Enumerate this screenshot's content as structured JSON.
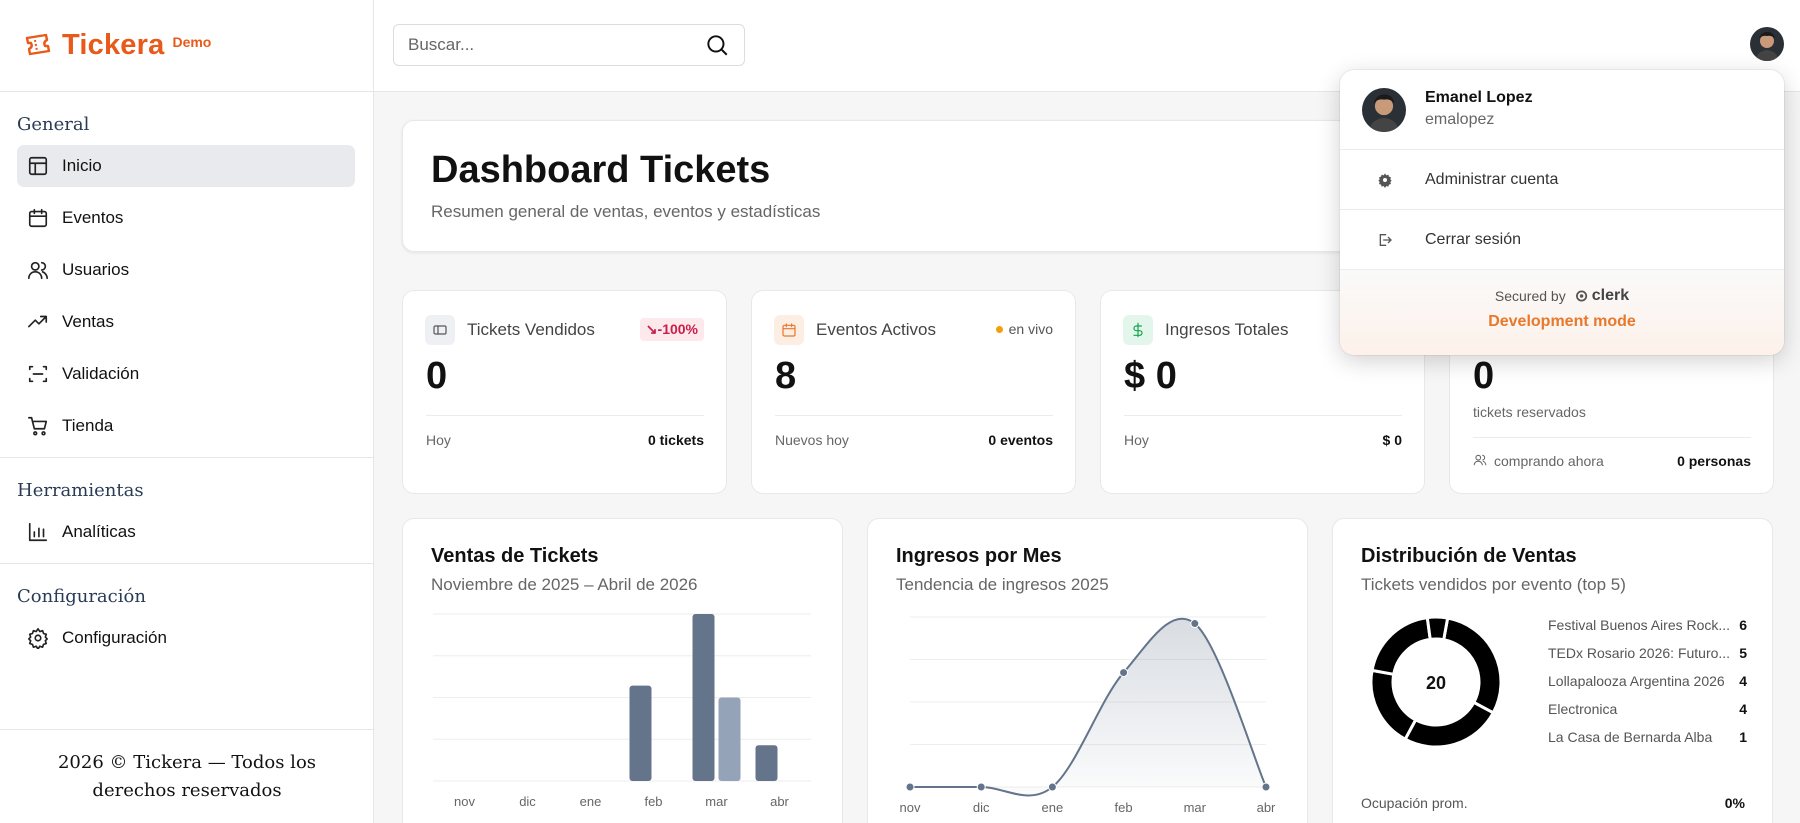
{
  "brand": {
    "name": "Tickera",
    "tag": "Demo"
  },
  "sidebar": {
    "sections": [
      {
        "title": "General",
        "items": [
          {
            "label": "Inicio",
            "icon": "layout-icon",
            "active": true
          },
          {
            "label": "Eventos",
            "icon": "calendar-icon"
          },
          {
            "label": "Usuarios",
            "icon": "users-icon"
          },
          {
            "label": "Ventas",
            "icon": "trending-up-icon"
          },
          {
            "label": "Validación",
            "icon": "scan-icon"
          },
          {
            "label": "Tienda",
            "icon": "cart-icon"
          }
        ]
      },
      {
        "title": "Herramientas",
        "items": [
          {
            "label": "Analíticas",
            "icon": "bar-chart-icon"
          }
        ]
      },
      {
        "title": "Configuración",
        "items": [
          {
            "label": "Configuración",
            "icon": "gear-icon"
          }
        ]
      }
    ],
    "footer": "2026 © Tickera — Todos los derechos reservados"
  },
  "search": {
    "placeholder": "Buscar..."
  },
  "hero": {
    "title": "Dashboard Tickets",
    "subtitle": "Resumen general de ventas, eventos y estadísticas"
  },
  "stats": [
    {
      "label": "Tickets Vendidos",
      "value": "0",
      "badge": "-100%",
      "foot_left": "Hoy",
      "foot_right": "0 tickets"
    },
    {
      "label": "Eventos Activos",
      "value": "8",
      "badge": "en vivo",
      "foot_left": "Nuevos hoy",
      "foot_right": "0 eventos"
    },
    {
      "label": "Ingresos Totales",
      "value": "$ 0",
      "foot_left": "Hoy",
      "foot_right": "$ 0"
    },
    {
      "value": "0",
      "sub": "tickets reservados",
      "foot_left": "comprando ahora",
      "foot_right": "0 personas"
    }
  ],
  "charts": {
    "ventas": {
      "title": "Ventas de Tickets",
      "subtitle": "Noviembre de 2025 – Abril de 2026"
    },
    "ingresos": {
      "title": "Ingresos por Mes",
      "subtitle": "Tendencia de ingresos 2025"
    },
    "distribucion": {
      "title": "Distribución de Ventas",
      "subtitle": "Tickets vendidos por evento (top 5)",
      "total": "20",
      "footer_label": "Ocupación prom.",
      "footer_value": "0%"
    }
  },
  "chart_data": [
    {
      "type": "bar",
      "categories": [
        "nov",
        "dic",
        "ene",
        "feb",
        "mar",
        "abr"
      ],
      "series": [
        {
          "values": [
            0,
            0,
            0,
            4,
            7,
            1.5
          ]
        },
        {
          "values": [
            0,
            0,
            0,
            0,
            3.5,
            0
          ]
        }
      ],
      "title": "Ventas de Tickets"
    },
    {
      "type": "area",
      "categories": [
        "nov",
        "dic",
        "ene",
        "feb",
        "mar",
        "abr"
      ],
      "values": [
        0,
        0,
        0,
        3.5,
        5,
        0
      ],
      "title": "Ingresos por Mes"
    },
    {
      "type": "pie",
      "labels": [
        "Festival Buenos Aires Rock...",
        "TEDx Rosario 2026: Futuro...",
        "Lollapalooza Argentina 2026",
        "Electronica",
        "La Casa de Bernarda Alba"
      ],
      "values": [
        6,
        5,
        4,
        4,
        1
      ],
      "title": "Distribución de Ventas"
    }
  ],
  "user_menu": {
    "name": "Emanel Lopez",
    "handle": "emalopez",
    "manage": "Administrar cuenta",
    "signout": "Cerrar sesión",
    "secured_by": "Secured by",
    "provider": "clerk",
    "dev_mode": "Development mode"
  },
  "colors": {
    "brand": "#e8591a",
    "bar_dark": "#64748b",
    "bar_light": "#94a3b8",
    "danger": "#c81e4a"
  }
}
